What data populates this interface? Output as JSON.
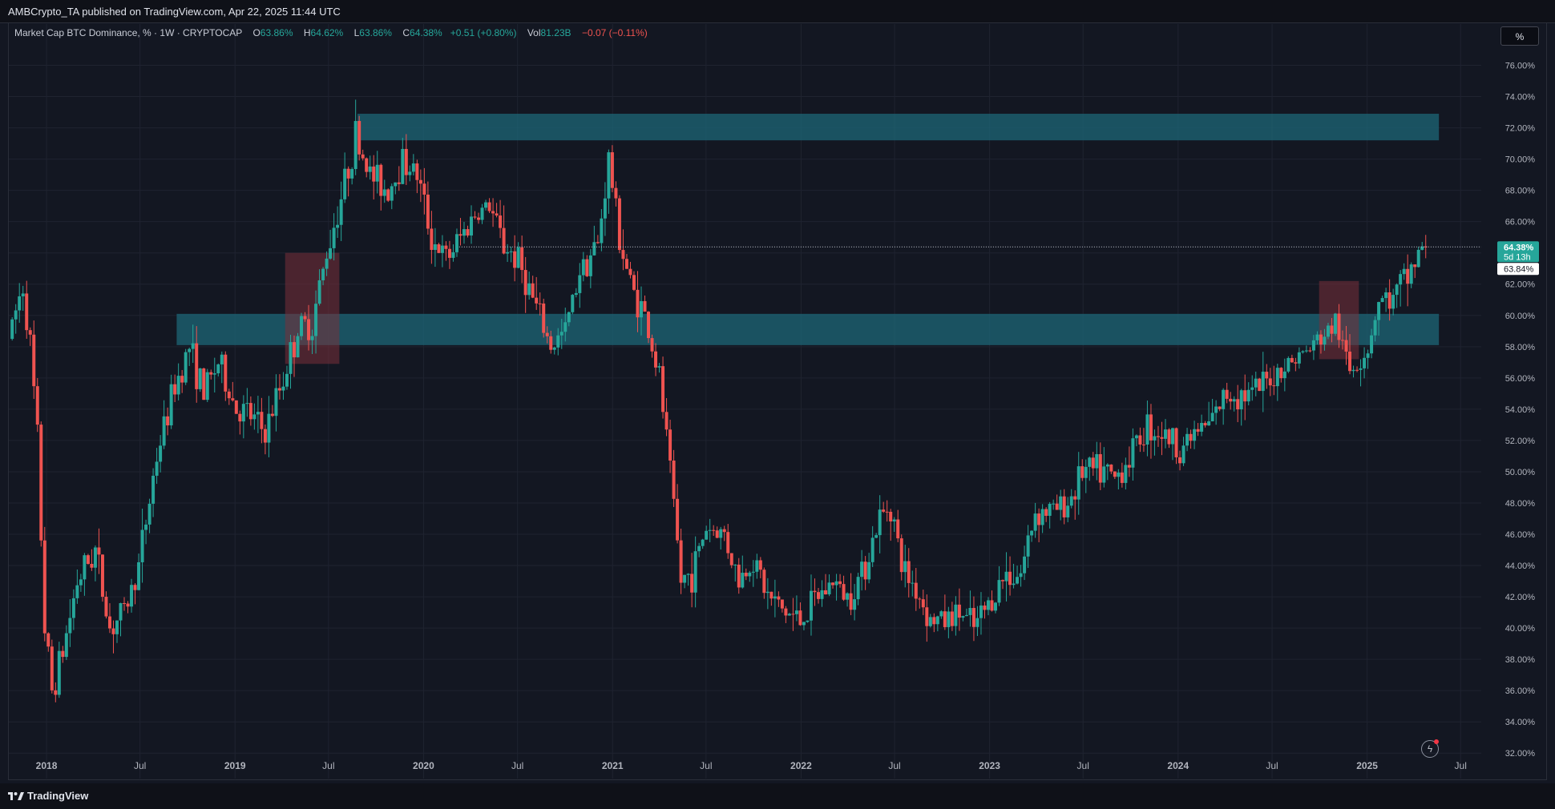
{
  "header": {
    "published": "AMBCrypto_TA published on TradingView.com, Apr 22, 2025 11:44 UTC"
  },
  "legend": {
    "symbol": "Market Cap BTC Dominance, % · 1W · CRYPTOCAP",
    "o_label": "O",
    "o_value": "63.86%",
    "h_label": "H",
    "h_value": "64.62%",
    "l_label": "L",
    "l_value": "63.86%",
    "c_label": "C",
    "c_value": "64.38%",
    "change": "+0.51 (+0.80%)",
    "vol_label": "Vol",
    "vol_value": "81.23B",
    "vol_change": "−0.07 (−0.11%)"
  },
  "toolbar": {
    "scale_button": "%"
  },
  "footer": {
    "brand": "TradingView"
  },
  "colors": {
    "background": "#131722",
    "up": "#26a69a",
    "down": "#ef5350",
    "zone_teal": "#1d6a7a",
    "zone_red": "#7a2f3a",
    "grid": "#1f2330"
  },
  "icons": {
    "logo": "tradingview-logo-icon",
    "flash": "lightning-icon"
  },
  "chart_data": {
    "type": "candlestick",
    "timeframe": "1W",
    "y_unit": "%",
    "ylim": [
      31.5,
      77.0
    ],
    "grid": true,
    "price_scale": "right",
    "y_ticks": [
      "32.00%",
      "34.00%",
      "36.00%",
      "38.00%",
      "40.00%",
      "42.00%",
      "44.00%",
      "46.00%",
      "48.00%",
      "50.00%",
      "52.00%",
      "54.00%",
      "56.00%",
      "58.00%",
      "60.00%",
      "62.00%",
      "64.00%",
      "66.00%",
      "68.00%",
      "70.00%",
      "72.00%",
      "74.00%",
      "76.00%"
    ],
    "x_ticks": [
      {
        "label": "2018",
        "date": "2018-01-01"
      },
      {
        "label": "Jul",
        "date": "2018-07-01"
      },
      {
        "label": "2019",
        "date": "2019-01-01"
      },
      {
        "label": "Jul",
        "date": "2019-07-01"
      },
      {
        "label": "2020",
        "date": "2020-01-01"
      },
      {
        "label": "Jul",
        "date": "2020-07-01"
      },
      {
        "label": "2021",
        "date": "2021-01-01"
      },
      {
        "label": "Jul",
        "date": "2021-07-01"
      },
      {
        "label": "2022",
        "date": "2022-01-01"
      },
      {
        "label": "Jul",
        "date": "2022-07-01"
      },
      {
        "label": "2023",
        "date": "2023-01-01"
      },
      {
        "label": "Jul",
        "date": "2023-07-01"
      },
      {
        "label": "2024",
        "date": "2024-01-01"
      },
      {
        "label": "Jul",
        "date": "2024-07-01"
      },
      {
        "label": "2025",
        "date": "2025-01-01"
      },
      {
        "label": "Jul",
        "date": "2025-07-01"
      }
    ],
    "x_range": [
      "2017-10-20",
      "2025-08-10"
    ],
    "price_path": [
      [
        "2017-10-23",
        58.5
      ],
      [
        "2017-11-20",
        62.0
      ],
      [
        "2017-12-04",
        58.0
      ],
      [
        "2017-12-18",
        52.0
      ],
      [
        "2018-01-01",
        40.0
      ],
      [
        "2018-01-15",
        36.0
      ],
      [
        "2018-02-05",
        38.5
      ],
      [
        "2018-03-05",
        43.0
      ],
      [
        "2018-04-09",
        45.0
      ],
      [
        "2018-05-07",
        40.0
      ],
      [
        "2018-06-04",
        41.0
      ],
      [
        "2018-07-02",
        44.0
      ],
      [
        "2018-08-06",
        51.0
      ],
      [
        "2018-09-10",
        55.5
      ],
      [
        "2018-10-08",
        58.0
      ],
      [
        "2018-11-05",
        55.0
      ],
      [
        "2018-12-03",
        57.0
      ],
      [
        "2019-01-07",
        54.0
      ],
      [
        "2019-02-04",
        53.5
      ],
      [
        "2019-03-04",
        52.5
      ],
      [
        "2019-04-08",
        56.0
      ],
      [
        "2019-05-06",
        59.0
      ],
      [
        "2019-06-03",
        59.5
      ],
      [
        "2019-07-01",
        64.0
      ],
      [
        "2019-08-05",
        68.5
      ],
      [
        "2019-08-26",
        71.5
      ],
      [
        "2019-09-23",
        69.0
      ],
      [
        "2019-10-28",
        68.0
      ],
      [
        "2019-11-25",
        70.0
      ],
      [
        "2019-12-23",
        69.0
      ],
      [
        "2020-01-20",
        65.0
      ],
      [
        "2020-02-17",
        63.5
      ],
      [
        "2020-03-16",
        65.0
      ],
      [
        "2020-04-13",
        66.5
      ],
      [
        "2020-05-11",
        67.0
      ],
      [
        "2020-06-08",
        64.5
      ],
      [
        "2020-07-06",
        63.5
      ],
      [
        "2020-08-03",
        61.0
      ],
      [
        "2020-09-07",
        58.0
      ],
      [
        "2020-10-05",
        59.0
      ],
      [
        "2020-11-02",
        63.0
      ],
      [
        "2020-12-07",
        64.5
      ],
      [
        "2020-12-28",
        70.0
      ],
      [
        "2021-01-18",
        65.0
      ],
      [
        "2021-02-08",
        62.0
      ],
      [
        "2021-03-08",
        60.0
      ],
      [
        "2021-04-05",
        56.0
      ],
      [
        "2021-04-26",
        50.0
      ],
      [
        "2021-05-17",
        43.0
      ],
      [
        "2021-06-07",
        43.5
      ],
      [
        "2021-07-05",
        46.5
      ],
      [
        "2021-08-09",
        46.0
      ],
      [
        "2021-09-06",
        43.0
      ],
      [
        "2021-10-04",
        44.5
      ],
      [
        "2021-11-01",
        42.0
      ],
      [
        "2021-12-06",
        41.0
      ],
      [
        "2022-01-03",
        40.5
      ],
      [
        "2022-02-07",
        42.0
      ],
      [
        "2022-03-07",
        43.0
      ],
      [
        "2022-04-04",
        42.0
      ],
      [
        "2022-05-02",
        43.5
      ],
      [
        "2022-06-06",
        47.0
      ],
      [
        "2022-06-27",
        48.0
      ],
      [
        "2022-07-18",
        44.0
      ],
      [
        "2022-08-15",
        42.5
      ],
      [
        "2022-09-12",
        40.5
      ],
      [
        "2022-10-10",
        40.5
      ],
      [
        "2022-11-07",
        41.0
      ],
      [
        "2022-12-05",
        40.0
      ],
      [
        "2023-01-02",
        41.5
      ],
      [
        "2023-02-06",
        43.5
      ],
      [
        "2023-03-06",
        43.5
      ],
      [
        "2023-04-03",
        47.5
      ],
      [
        "2023-05-08",
        47.5
      ],
      [
        "2023-06-05",
        48.0
      ],
      [
        "2023-07-03",
        50.0
      ],
      [
        "2023-08-07",
        50.0
      ],
      [
        "2023-09-04",
        49.5
      ],
      [
        "2023-10-02",
        51.0
      ],
      [
        "2023-11-06",
        53.0
      ],
      [
        "2023-12-04",
        52.5
      ],
      [
        "2024-01-08",
        51.5
      ],
      [
        "2024-02-05",
        52.5
      ],
      [
        "2024-03-04",
        53.0
      ],
      [
        "2024-04-08",
        55.0
      ],
      [
        "2024-05-06",
        55.0
      ],
      [
        "2024-06-03",
        55.0
      ],
      [
        "2024-07-01",
        56.0
      ],
      [
        "2024-08-05",
        57.0
      ],
      [
        "2024-09-02",
        57.5
      ],
      [
        "2024-10-07",
        58.5
      ],
      [
        "2024-11-04",
        59.5
      ],
      [
        "2024-12-02",
        56.5
      ],
      [
        "2025-01-06",
        58.0
      ],
      [
        "2025-01-27",
        61.0
      ],
      [
        "2025-02-24",
        61.0
      ],
      [
        "2025-03-24",
        62.5
      ],
      [
        "2025-04-21",
        64.38
      ]
    ],
    "current_price": {
      "value": 64.38,
      "label": "64.38%",
      "countdown": "5d 13h"
    },
    "dotted_line_start": "2020-03-10",
    "previous_close": {
      "value": 63.84,
      "label": "63.84%"
    },
    "zones": [
      {
        "kind": "resistance",
        "color": "teal",
        "from": "2019-08-26",
        "to": "2025-05-20",
        "low": 71.2,
        "high": 72.9
      },
      {
        "kind": "support",
        "color": "teal",
        "from": "2018-09-10",
        "to": "2025-05-20",
        "low": 58.1,
        "high": 60.1
      },
      {
        "kind": "highlight",
        "color": "red",
        "from": "2019-04-08",
        "to": "2019-07-22",
        "low": 56.9,
        "high": 64.0
      },
      {
        "kind": "highlight",
        "color": "red",
        "from": "2024-09-30",
        "to": "2024-12-16",
        "low": 57.2,
        "high": 62.2
      }
    ]
  }
}
